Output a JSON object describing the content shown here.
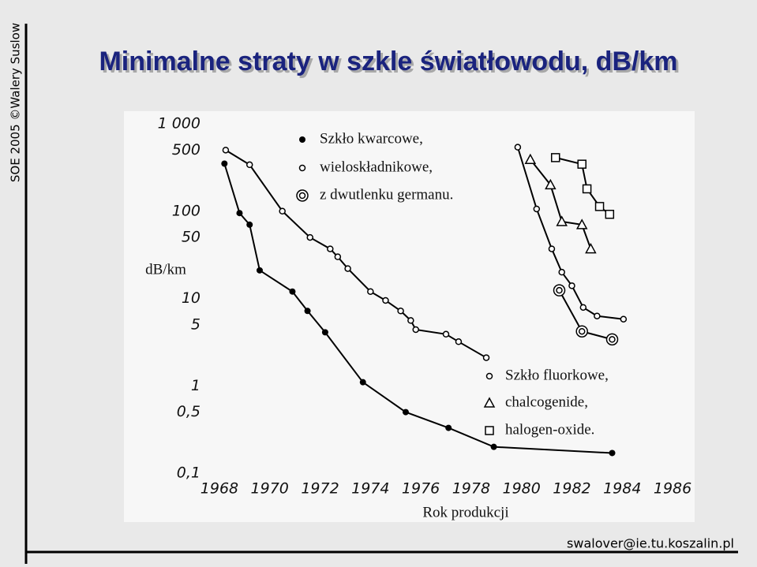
{
  "slide": {
    "title": "Minimalne straty w szkle światłowodu, dB/km",
    "side_text": "SOE 2005 ©Walery Suslow",
    "footer": "swalover@ie.tu.koszalin.pl"
  },
  "chart_data": {
    "type": "line",
    "ylabel": "dB/km",
    "xlabel": "Rok produkcji",
    "log_y": true,
    "grid": false,
    "xlim": [
      1967.5,
      1986.5
    ],
    "xticks": [
      1968,
      1970,
      1972,
      1974,
      1976,
      1978,
      1980,
      1982,
      1984,
      1986
    ],
    "ylim": [
      0.1,
      1000
    ],
    "yticks": [
      {
        "value": 1000,
        "label": "1 000"
      },
      500,
      100,
      50,
      10,
      5,
      1,
      {
        "value": 0.5,
        "label": "0,5"
      },
      {
        "value": 0.1,
        "label": "0,1"
      }
    ],
    "legend": [
      [
        {
          "label": "Szkło kwarcowe,",
          "marker": "filled"
        },
        {
          "label": "wieloskładnikowe,",
          "marker": "open"
        },
        {
          "label": "z dwutlenku germanu.",
          "marker": "double"
        }
      ],
      [
        {
          "label": "Szkło fluorkowe,",
          "marker": "open"
        },
        {
          "label": "chalcogenide,",
          "marker": "triangle"
        },
        {
          "label": "halogen-oxide.",
          "marker": "square"
        }
      ]
    ],
    "series": [
      {
        "marker": "filled",
        "color": "#000000",
        "x": [
          1968.2,
          1968.8,
          1969.2,
          1969.6,
          1970.9,
          1971.5,
          1972.2,
          1973.7,
          1975.4,
          1977.1,
          1978.9,
          1983.6
        ],
        "values": [
          350,
          95,
          70,
          21,
          12,
          7.2,
          4.1,
          1.1,
          0.5,
          0.33,
          0.2,
          0.17
        ]
      },
      {
        "marker": "open",
        "color": "#000000",
        "x": [
          1968.25,
          1969.2,
          1970.5,
          1971.6,
          1972.4,
          1972.7,
          1973.1,
          1974,
          1974.6,
          1975.2,
          1975.6,
          1975.8,
          1977,
          1977.5,
          1978.6
        ],
        "values": [
          500,
          340,
          100,
          50,
          37,
          30,
          22,
          12,
          9.5,
          7.2,
          5.6,
          4.4,
          3.9,
          3.2,
          2.1
        ]
      },
      {
        "marker": "open",
        "color": "#000000",
        "x": [
          1979.85,
          1980.6,
          1981.2,
          1981.6,
          1982,
          1982.45,
          1983,
          1984.05
        ],
        "values": [
          540,
          106,
          37,
          20,
          14,
          7.9,
          6.3,
          5.8
        ]
      },
      {
        "marker": "double",
        "color": "#000000",
        "x": [
          1981.5,
          1982.4,
          1983.6
        ],
        "values": [
          12.4,
          4.2,
          3.4
        ]
      },
      {
        "marker": "triangle",
        "color": "#000000",
        "x": [
          1980.35,
          1981.15,
          1981.6,
          1982.4,
          1982.75
        ],
        "values": [
          390,
          200,
          76,
          70,
          37
        ]
      },
      {
        "marker": "square",
        "color": "#000000",
        "x": [
          1981.35,
          1982.4,
          1982.6,
          1983.1,
          1983.5
        ],
        "values": [
          410,
          345,
          180,
          113,
          92
        ]
      }
    ]
  }
}
